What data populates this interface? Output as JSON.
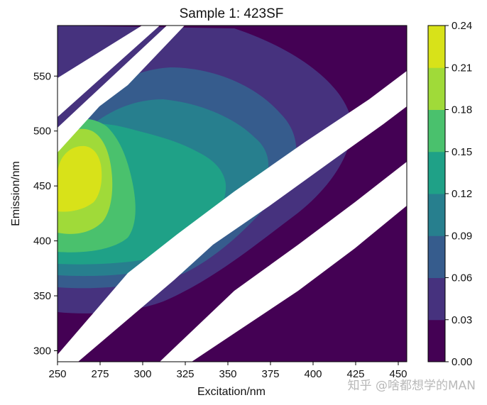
{
  "chart_data": {
    "type": "contour",
    "title": "Sample 1: 423SF",
    "xlabel": "Excitation/nm",
    "ylabel": "Emission/nm",
    "xlim": [
      250,
      455
    ],
    "ylim": [
      290,
      596
    ],
    "xticks": [
      250,
      275,
      300,
      325,
      350,
      375,
      400,
      425,
      450
    ],
    "yticks": [
      300,
      350,
      400,
      450,
      500,
      550
    ],
    "colorbar": {
      "levels": [
        0.0,
        0.03,
        0.06,
        0.09,
        0.12,
        0.15,
        0.18,
        0.21,
        0.24
      ],
      "tick_labels": [
        "0.00",
        "0.03",
        "0.06",
        "0.09",
        "0.12",
        "0.15",
        "0.18",
        "0.21",
        "0.24"
      ],
      "colors": [
        "#440154",
        "#46327e",
        "#365c8d",
        "#277f8e",
        "#1fa187",
        "#4ac16d",
        "#a0da39",
        "#d8e219"
      ]
    },
    "peak": {
      "excitation": 265,
      "emission": 455,
      "intensity": 0.23
    },
    "masked_bands": [
      {
        "name": "rayleigh-first-order",
        "description": "Emission ≈ Excitation"
      },
      {
        "name": "raman",
        "description": "Emission ≈ Excitation + 40"
      },
      {
        "name": "rayleigh-second-order",
        "description": "Emission ≈ 2 × Excitation"
      }
    ]
  },
  "watermark": "知乎 @啥都想学的MAN"
}
